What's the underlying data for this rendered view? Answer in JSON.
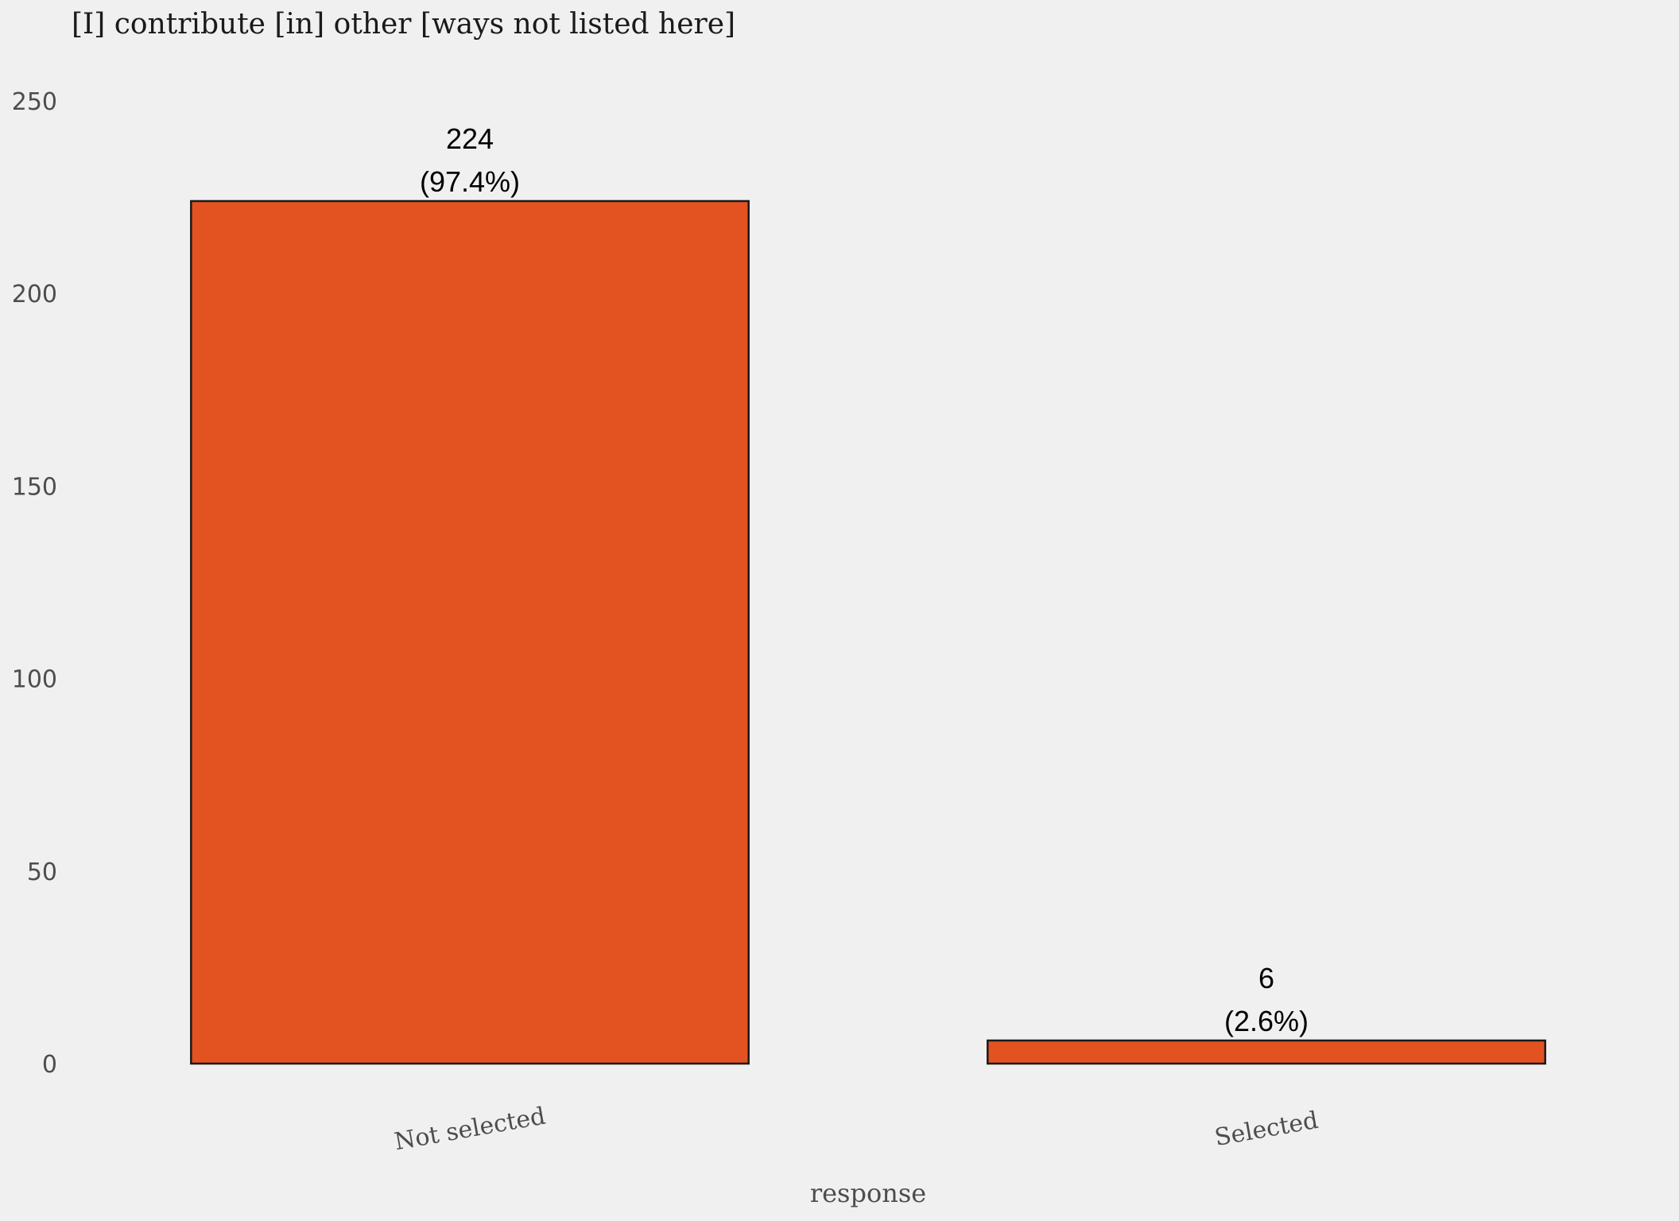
{
  "chart_data": {
    "type": "bar",
    "title": "[I] contribute [in] other [ways not listed here]",
    "xlabel": "response",
    "ylabel": "",
    "categories": [
      "Not selected",
      "Selected"
    ],
    "values": [
      224,
      6
    ],
    "value_labels": [
      "224",
      "6"
    ],
    "percent_labels": [
      "(97.4%)",
      "(2.6%)"
    ],
    "ylim": [
      0,
      250
    ],
    "yticks": [
      0,
      50,
      100,
      150,
      200,
      250
    ],
    "ytick_labels": [
      "0",
      "50",
      "100",
      "150",
      "200",
      "250"
    ],
    "grid": false,
    "bar_color": "#e35221",
    "bar_edge_color": "#1a1a1a",
    "background_color": "#f0f0f0"
  }
}
